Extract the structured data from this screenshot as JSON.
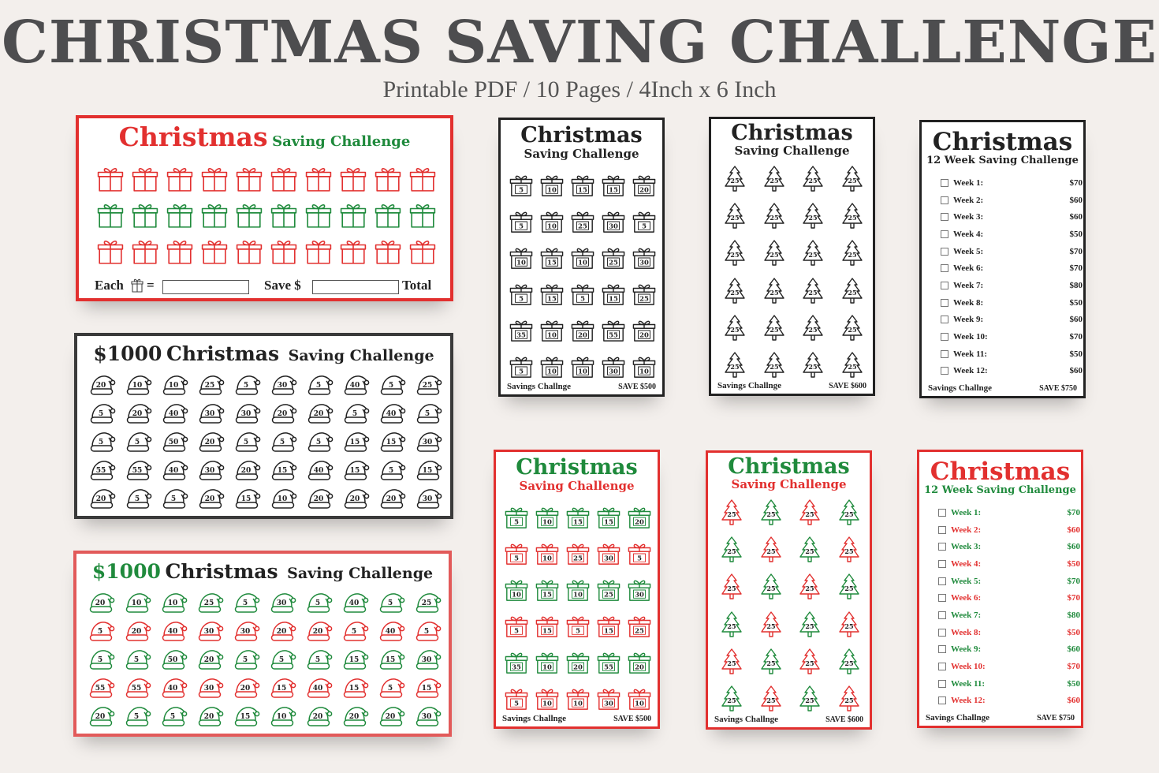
{
  "header": {
    "title": "CHRISTMAS SAVING CHALLENGE",
    "subtitle": "Printable PDF / 10 Pages / 4Inch x 6 Inch"
  },
  "colors": {
    "red": "#e2302f",
    "green": "#1f8a3c",
    "black": "#222222",
    "heading_grey": "#4d4d4f"
  },
  "landscape_gift": {
    "title_main": "Christmas",
    "title_sub": "Saving Challenge",
    "row_colors": [
      "red",
      "green",
      "red"
    ],
    "each_label": "Each",
    "equals": "=",
    "save_label": "Save $",
    "total_label": "Total"
  },
  "hats_black": {
    "title_amount": "$1000",
    "title_main": "Christmas",
    "title_sub": "Saving Challenge",
    "values": [
      [
        20,
        10,
        10,
        25,
        5,
        30,
        5,
        40,
        5,
        25
      ],
      [
        5,
        20,
        40,
        30,
        30,
        20,
        20,
        5,
        40,
        5
      ],
      [
        5,
        5,
        50,
        20,
        5,
        5,
        5,
        15,
        15,
        30
      ],
      [
        55,
        55,
        40,
        30,
        20,
        15,
        40,
        15,
        5,
        15
      ],
      [
        20,
        5,
        5,
        20,
        15,
        10,
        20,
        20,
        20,
        30
      ]
    ]
  },
  "hats_color": {
    "title_amount": "$1000",
    "title_main": "Christmas",
    "title_sub": "Saving Challenge",
    "row_colors": [
      "green",
      "red",
      "green",
      "red",
      "green"
    ],
    "values": [
      [
        20,
        10,
        10,
        25,
        5,
        30,
        5,
        40,
        5,
        25
      ],
      [
        5,
        20,
        40,
        30,
        30,
        20,
        20,
        5,
        40,
        5
      ],
      [
        5,
        5,
        50,
        20,
        5,
        5,
        5,
        15,
        15,
        30
      ],
      [
        55,
        55,
        40,
        30,
        20,
        15,
        40,
        15,
        5,
        15
      ],
      [
        20,
        5,
        5,
        20,
        15,
        10,
        20,
        20,
        20,
        30
      ]
    ]
  },
  "portrait_gift": {
    "title_main": "Christmas",
    "title_sub": "Saving Challenge",
    "values": [
      [
        5,
        10,
        15,
        15,
        20
      ],
      [
        5,
        10,
        25,
        30,
        5
      ],
      [
        10,
        15,
        10,
        25,
        30
      ],
      [
        5,
        15,
        5,
        15,
        25
      ],
      [
        35,
        10,
        20,
        55,
        20
      ],
      [
        5,
        10,
        10,
        30,
        10
      ]
    ],
    "footer_left": "Savings Challnge",
    "footer_right": "SAVE $500"
  },
  "portrait_tree": {
    "title_main": "Christmas",
    "title_sub": "Saving Challenge",
    "tree_value": 25,
    "rows": 6,
    "cols": 4,
    "footer_left": "Savings Challnge",
    "footer_right": "SAVE $600"
  },
  "week_list": {
    "title_main": "Christmas",
    "title_sub": "12 Week Saving Challenge",
    "weeks": [
      {
        "label": "Week 1:",
        "amount": "$70"
      },
      {
        "label": "Week 2:",
        "amount": "$60"
      },
      {
        "label": "Week 3:",
        "amount": "$60"
      },
      {
        "label": "Week 4:",
        "amount": "$50"
      },
      {
        "label": "Week 5:",
        "amount": "$70"
      },
      {
        "label": "Week 6:",
        "amount": "$70"
      },
      {
        "label": "Week 7:",
        "amount": "$80"
      },
      {
        "label": "Week 8:",
        "amount": "$50"
      },
      {
        "label": "Week 9:",
        "amount": "$60"
      },
      {
        "label": "Week 10:",
        "amount": "$70"
      },
      {
        "label": "Week 11:",
        "amount": "$50"
      },
      {
        "label": "Week 12:",
        "amount": "$60"
      }
    ],
    "footer_left": "Savings Challnge",
    "footer_right": "SAVE $750"
  }
}
